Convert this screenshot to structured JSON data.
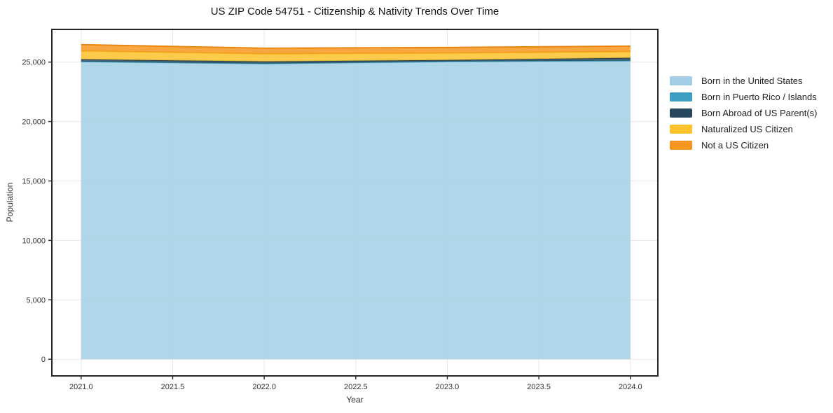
{
  "title": "US ZIP Code 54751 - Citizenship & Nativity Trends Over Time",
  "chart_data": {
    "type": "area",
    "stacked": true,
    "title": "US ZIP Code 54751 - Citizenship & Nativity Trends Over Time",
    "xlabel": "Year",
    "ylabel": "Population",
    "x": [
      2021,
      2022,
      2023,
      2024
    ],
    "series": [
      {
        "name": "Born in the United States",
        "values": [
          25030,
          24860,
          25040,
          25100
        ],
        "color": "#a2cfe5",
        "line": "#8fc0d8"
      },
      {
        "name": "Born in Puerto Rico / Islands",
        "values": [
          25,
          20,
          15,
          30
        ],
        "color": "#3c9fbf",
        "line": "#3391b0"
      },
      {
        "name": "Born Abroad of US Parent(s)",
        "values": [
          180,
          175,
          120,
          230
        ],
        "color": "#27485c",
        "line": "#203d4e"
      },
      {
        "name": "Naturalized US Citizen",
        "values": [
          705,
          650,
          590,
          530
        ],
        "color": "#fcc22d",
        "line": "#efae15"
      },
      {
        "name": "Not a US Citizen",
        "values": [
          530,
          470,
          470,
          460
        ],
        "color": "#f6961e",
        "line": "#e8830e"
      }
    ],
    "xlim": [
      2020.84,
      2024.15
    ],
    "ylim": [
      -1400,
      27750
    ],
    "xticks": [
      2021.0,
      2021.5,
      2022.0,
      2022.5,
      2023.0,
      2023.5,
      2024.0
    ],
    "yticks": [
      0,
      5000,
      10000,
      15000,
      20000,
      25000
    ],
    "grid": true,
    "legend_position": "right",
    "grid_color": "#e7e7e7",
    "spine_color": "#262626",
    "tick_color": "#333333"
  }
}
